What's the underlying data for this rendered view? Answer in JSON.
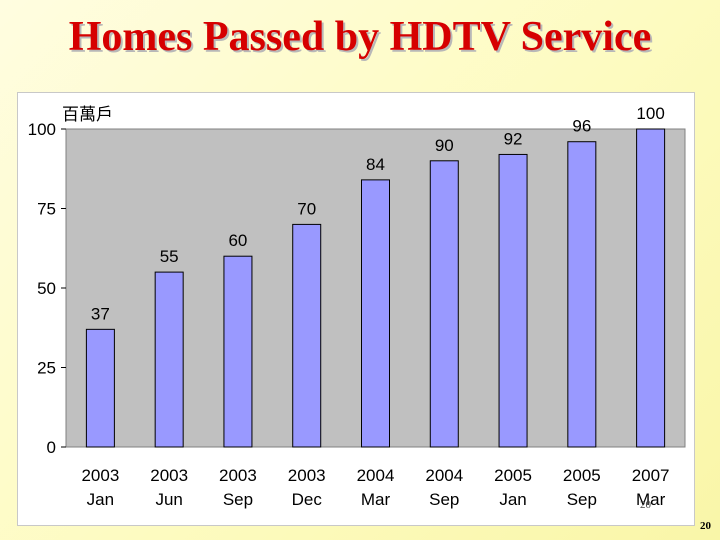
{
  "title": "Homes Passed by HDTV Service",
  "page_number": "20",
  "chart_data": {
    "type": "bar",
    "title": "",
    "ylabel": "百萬戶",
    "xlabel": "",
    "ylim": [
      0,
      100
    ],
    "yticks": [
      "0",
      "25",
      "50",
      "75",
      "100"
    ],
    "categories": [
      [
        "2003",
        "Jan"
      ],
      [
        "2003",
        "Jun"
      ],
      [
        "2003",
        "Sep"
      ],
      [
        "2003",
        "Dec"
      ],
      [
        "2004",
        "Mar"
      ],
      [
        "2004",
        "Sep"
      ],
      [
        "2005",
        "Jan"
      ],
      [
        "2005",
        "Sep"
      ],
      [
        "2007",
        "Mar"
      ]
    ],
    "values": [
      37,
      55,
      60,
      70,
      84,
      90,
      92,
      96,
      100
    ],
    "data_labels": [
      "37",
      "55",
      "60",
      "70",
      "84",
      "90",
      "92",
      "96",
      "100"
    ],
    "grid": false,
    "legend": "none",
    "colors": {
      "bar": "#9999ff",
      "bar_stroke": "#000000",
      "plot_bg": "#c0c0c0"
    }
  }
}
